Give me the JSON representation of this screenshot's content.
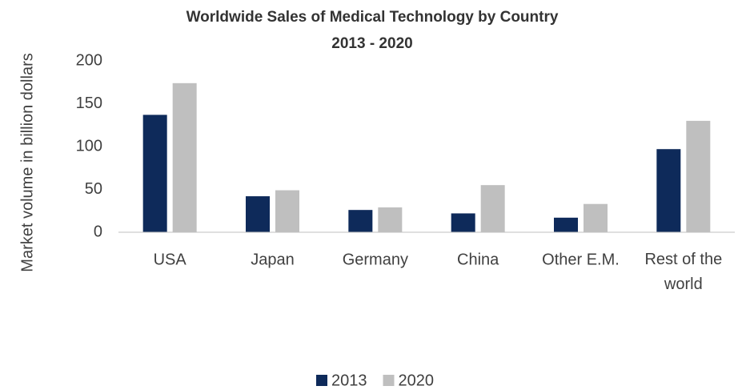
{
  "chart_data": {
    "type": "bar",
    "title": "Worldwide Sales of Medical Technology by Country",
    "subtitle": "2013 - 2020",
    "ylabel": "Market volume in billion dollars",
    "categories": [
      "USA",
      "Japan",
      "Germany",
      "China",
      "Other E.M.",
      "Rest of the world"
    ],
    "series": [
      {
        "name": "2013",
        "color": "#0e2a5a",
        "values": [
          137,
          42,
          26,
          22,
          17,
          97
        ]
      },
      {
        "name": "2020",
        "color": "#bfbfbf",
        "values": [
          174,
          49,
          29,
          55,
          33,
          130
        ]
      }
    ],
    "ylim": [
      0,
      200
    ],
    "yticks": [
      0,
      50,
      100,
      150,
      200
    ],
    "grid": false,
    "legend": "bottom"
  }
}
